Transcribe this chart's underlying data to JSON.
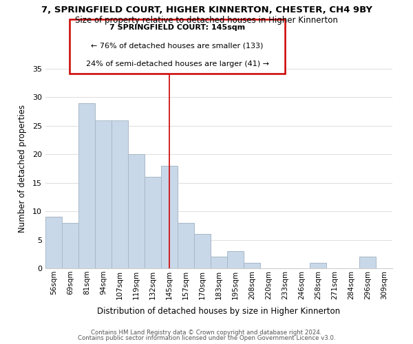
{
  "title": "7, SPRINGFIELD COURT, HIGHER KINNERTON, CHESTER, CH4 9BY",
  "subtitle": "Size of property relative to detached houses in Higher Kinnerton",
  "xlabel": "Distribution of detached houses by size in Higher Kinnerton",
  "ylabel": "Number of detached properties",
  "bar_labels": [
    "56sqm",
    "69sqm",
    "81sqm",
    "94sqm",
    "107sqm",
    "119sqm",
    "132sqm",
    "145sqm",
    "157sqm",
    "170sqm",
    "183sqm",
    "195sqm",
    "208sqm",
    "220sqm",
    "233sqm",
    "246sqm",
    "258sqm",
    "271sqm",
    "284sqm",
    "296sqm",
    "309sqm"
  ],
  "bar_values": [
    9,
    8,
    29,
    26,
    26,
    20,
    16,
    18,
    8,
    6,
    2,
    3,
    1,
    0,
    0,
    0,
    1,
    0,
    0,
    2,
    0
  ],
  "bar_color": "#c8d8e8",
  "bar_edge_color": "#a8b8c8",
  "highlight_index": 7,
  "highlight_line_color": "#cc0000",
  "ylim": [
    0,
    35
  ],
  "yticks": [
    0,
    5,
    10,
    15,
    20,
    25,
    30,
    35
  ],
  "annotation_title": "7 SPRINGFIELD COURT: 145sqm",
  "annotation_line1": "← 76% of detached houses are smaller (133)",
  "annotation_line2": "24% of semi-detached houses are larger (41) →",
  "annotation_box_color": "#ffffff",
  "annotation_box_edge": "#cc0000",
  "footer1": "Contains HM Land Registry data © Crown copyright and database right 2024.",
  "footer2": "Contains public sector information licensed under the Open Government Licence v3.0.",
  "background_color": "#ffffff",
  "grid_color": "#dddddd"
}
